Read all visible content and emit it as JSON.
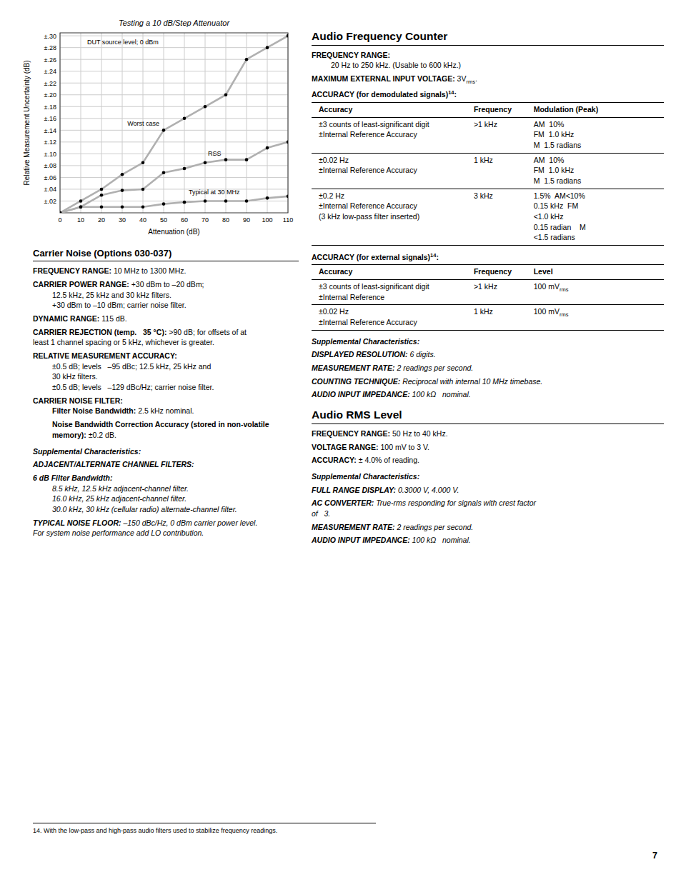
{
  "chart_data": {
    "type": "line",
    "title": "Testing a 10 dB/Step Attenuator",
    "x_label": "Attenuation (dB)",
    "y_label": "Relative Measurement Uncertainty (dB)",
    "x": [
      0,
      10,
      20,
      30,
      40,
      50,
      60,
      70,
      80,
      90,
      100,
      110
    ],
    "series": [
      {
        "name": "Worst case",
        "color": "#b0b0b0",
        "values": [
          0.0,
          0.02,
          0.04,
          0.065,
          0.085,
          0.14,
          0.16,
          0.18,
          0.2,
          0.26,
          0.28,
          0.3
        ]
      },
      {
        "name": "RSS",
        "color": "#b0b0b0",
        "values": [
          0.0,
          0.01,
          0.03,
          0.038,
          0.04,
          0.068,
          0.075,
          0.085,
          0.09,
          0.09,
          0.11,
          0.12
        ]
      },
      {
        "name": "Typical at 30 MHz",
        "color": "#b0b0b0",
        "values": [
          0.0,
          0.01,
          0.01,
          0.01,
          0.01,
          0.015,
          0.018,
          0.02,
          0.02,
          0.02,
          0.025,
          0.028
        ]
      }
    ],
    "annotations": [
      "DUT source level; 0 dBm"
    ],
    "marker": "circle",
    "grid": true,
    "xlim": [
      0,
      110
    ],
    "xticks": [
      0,
      10,
      20,
      30,
      40,
      50,
      60,
      70,
      80,
      90,
      100,
      110
    ],
    "ylim": [
      0,
      0.305
    ],
    "yticks": [
      {
        "value": 0.02,
        "label": "±.02"
      },
      {
        "value": 0.04,
        "label": "±.04"
      },
      {
        "value": 0.06,
        "label": "±.06"
      },
      {
        "value": 0.08,
        "label": "±.08"
      },
      {
        "value": 0.1,
        "label": "±.10"
      },
      {
        "value": 0.12,
        "label": "±.12"
      },
      {
        "value": 0.14,
        "label": "±.14"
      },
      {
        "value": 0.16,
        "label": "±.16"
      },
      {
        "value": 0.18,
        "label": "±.18"
      },
      {
        "value": 0.2,
        "label": "±.20"
      },
      {
        "value": 0.22,
        "label": "±.22"
      },
      {
        "value": 0.24,
        "label": "±.24"
      },
      {
        "value": 0.26,
        "label": "±.26"
      },
      {
        "value": 0.28,
        "label": "±.28"
      },
      {
        "value": 0.3,
        "label": "±.30"
      }
    ]
  },
  "page_text": {
    "left": [
      {
        "heading": "Carrier Noise (Options 030-037)"
      },
      {
        "label": "FREQUENCY RANGE:",
        "text": "10 MHz to 1300 MHz."
      },
      {
        "label": "CARRIER POWER RANGE:",
        "text": "+30 dBm to –20 dBm;",
        "lines": [
          "12.5 kHz, 25 kHz and 30 kHz filters.",
          "+30 dBm to –10 dBm; carrier noise filter."
        ]
      },
      {
        "label": "DYNAMIC RANGE:",
        "text": "115 dB."
      },
      {
        "label": "CARRIER REJECTION (temp.   35 °C):",
        "text": ">90 dB; for offsets of at",
        "after": [
          "least 1 channel spacing or 5 kHz, whichever is greater."
        ]
      },
      {
        "label": "RELATIVE MEASUREMENT ACCURACY:",
        "lines": [
          "±0.5 dB; levels   –95 dBc; 12.5 kHz, 25 kHz and",
          "30 kHz filters.",
          "±0.5 dB; levels   –129 dBc/Hz; carrier noise filter."
        ]
      },
      {
        "label": "CARRIER NOISE FILTER:",
        "items": [
          {
            "label": "Filter Noise Bandwidth:",
            "text": "2.5 kHz nominal."
          },
          {
            "label": [
              "Noise Bandwidth Correction Accuracy (stored in non-volatile",
              "memory):"
            ],
            "text": "±0.2 dB."
          }
        ]
      },
      {
        "supplemental": "Supplemental Characteristics:",
        "items": [
          {
            "label": "ADJACENT/ALTERNATE CHANNEL FILTERS:"
          },
          {
            "label": "6 dB Filter Bandwidth:",
            "lines": [
              "8.5 kHz, 12.5 kHz adjacent-channel filter.",
              "16.0 kHz, 25 kHz adjacent-channel filter.",
              "30.0 kHz, 30 kHz (cellular radio) alternate-channel filter."
            ]
          },
          {
            "label": "TYPICAL NOISE FLOOR:",
            "text": "–150 dBc/Hz, 0 dBm carrier power level.",
            "after": [
              "For system noise performance add LO contribution."
            ]
          }
        ]
      }
    ],
    "right": [
      {
        "heading": "Audio Frequency Counter"
      },
      {
        "label": "FREQUENCY RANGE:",
        "lines": [
          "20 Hz to 250 kHz. (Usable to 600 kHz.)"
        ]
      },
      {
        "label": "MAXIMUM EXTERNAL INPUT VOLTAGE:",
        "text": [
          "3V",
          {
            "sub": "rms"
          },
          "."
        ]
      },
      {
        "label": [
          "ACCURACY (for demodulated signals)",
          {
            "sup": "14"
          },
          ":"
        ],
        "table": {
          "header": [
            "Accuracy",
            "Frequency",
            "Modulation (Peak)"
          ],
          "rows": [
            [
              [
                "±3 counts of least-significant digit",
                "±Internal Reference Accuracy"
              ],
              [
                ">1 kHz"
              ],
              [
                "AM  10%",
                "FM  1.0 kHz",
                "M  1.5 radians"
              ]
            ],
            [
              [
                "±0.02 Hz",
                "±Internal Reference Accuracy"
              ],
              [
                "1 kHz"
              ],
              [
                "AM  10%",
                "FM  1.0 kHz",
                "M  1.5 radians"
              ]
            ],
            [
              [
                "±0.2 Hz",
                "±Internal Reference Accuracy",
                "(3 kHz low-pass filter inserted)"
              ],
              [
                "3 kHz"
              ],
              [
                "1.5%  AM<10%",
                "0.15 kHz  FM",
                "<1.0 kHz",
                "0.15 radian    M",
                "<1.5 radians"
              ]
            ]
          ]
        }
      },
      {
        "label": [
          "ACCURACY (for external signals)",
          {
            "sup": "14"
          },
          ":"
        ],
        "table": {
          "header": [
            "Accuracy",
            "Frequency",
            "Level"
          ],
          "rows": [
            [
              [
                "±3 counts of least-significant digit",
                "±Internal Reference"
              ],
              [
                ">1 kHz"
              ],
              [
                [
                  "100 mV",
                  {
                    "sub": "rms"
                  }
                ]
              ]
            ],
            [
              [
                "±0.02 Hz",
                "±Internal Reference Accuracy"
              ],
              [
                "1 kHz"
              ],
              [
                [
                  "100 mV",
                  {
                    "sub": "rms"
                  }
                ]
              ]
            ]
          ]
        }
      },
      {
        "supplemental": "Supplemental Characteristics:",
        "items": [
          {
            "label": "DISPLAYED RESOLUTION:",
            "text": "6 digits."
          },
          {
            "label": "MEASUREMENT RATE:",
            "text": "2 readings per second."
          },
          {
            "label": "COUNTING TECHNIQUE:",
            "text": "Reciprocal with internal 10 MHz timebase."
          },
          {
            "label": "AUDIO INPUT IMPEDANCE:",
            "text": "100 kΩ   nominal."
          }
        ]
      },
      {
        "heading": "Audio RMS Level"
      },
      {
        "label": "FREQUENCY RANGE:",
        "text": "50 Hz to 40 kHz."
      },
      {
        "label": "VOLTAGE RANGE:",
        "text": "100 mV to 3 V."
      },
      {
        "label": "ACCURACY:",
        "text": "± 4.0% of reading."
      },
      {
        "supplemental": "Supplemental Characteristics:",
        "items": [
          {
            "label": "FULL RANGE DISPLAY:",
            "text": "0.3000 V, 4.000 V."
          },
          {
            "label": "AC CONVERTER:",
            "text": "True-rms responding for signals with crest factor",
            "after": [
              "of   3."
            ]
          },
          {
            "label": "MEASUREMENT RATE:",
            "text": "2 readings per second."
          },
          {
            "label": "AUDIO INPUT IMPEDANCE:",
            "text": "100 kΩ   nominal."
          }
        ]
      }
    ],
    "footnote": "14. With the low-pass and high-pass audio filters used to stabilize frequency readings.",
    "page_number": "7"
  }
}
